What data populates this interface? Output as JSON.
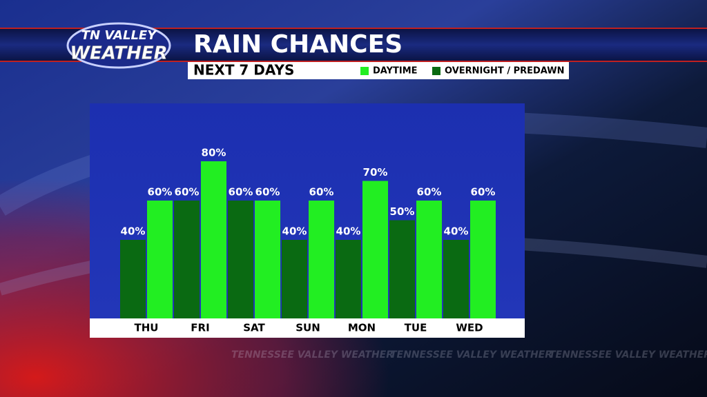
{
  "chart_data": {
    "type": "bar",
    "logo_line1": "TN VALLEY",
    "logo_line2": "WEATHER",
    "title": "RAIN CHANCES",
    "subtitle": "NEXT 7 DAYS",
    "watermark": "TENNESSEE VALLEY WEATHER",
    "categories": [
      "THU",
      "FRI",
      "SAT",
      "SUN",
      "MON",
      "TUE",
      "WED"
    ],
    "series": [
      {
        "name": "OVERNIGHT / PREDAWN",
        "color": "#0a6a12",
        "values": [
          40,
          60,
          60,
          40,
          40,
          50,
          40
        ],
        "value_labels": [
          "40%",
          "60%",
          "60%",
          "40%",
          "40%",
          "50%",
          "40%"
        ]
      },
      {
        "name": "DAYTIME",
        "color": "#22ee22",
        "values": [
          60,
          80,
          60,
          60,
          70,
          60,
          60
        ],
        "value_labels": [
          "60%",
          "80%",
          "60%",
          "60%",
          "70%",
          "60%",
          "60%"
        ]
      }
    ],
    "legend_order": [
      1,
      0
    ],
    "ylim": [
      0,
      100
    ]
  }
}
